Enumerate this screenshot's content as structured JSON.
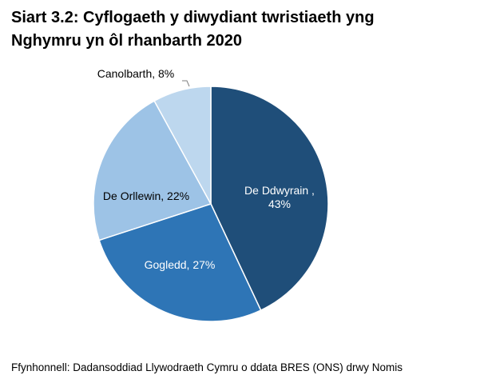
{
  "chart_data": {
    "type": "pie",
    "title_lines": [
      "Siart 3.2: Cyflogaeth y diwydiant twristiaeth yng",
      "Nghymru yn ôl rhanbarth 2020"
    ],
    "slices": [
      {
        "label_lines": [
          "De Ddwyrain ,",
          "43%"
        ],
        "value": 43,
        "color": "#1f4e79",
        "text_color": "#ffffff"
      },
      {
        "label_lines": [
          "Gogledd, 27%"
        ],
        "value": 27,
        "color": "#2e75b6",
        "text_color": "#ffffff"
      },
      {
        "label_lines": [
          "De Orllewin, 22%"
        ],
        "value": 22,
        "color": "#9dc3e6",
        "text_color": "#000000"
      },
      {
        "label_lines": [
          "Canolbarth, 8%"
        ],
        "value": 8,
        "color": "#bdd7ee",
        "text_color": "#000000"
      }
    ],
    "start_angle": "12 o'clock",
    "direction": "clockwise",
    "source": "Ffynhonnell: Dadansoddiad Llywodraeth Cymru o ddata BRES (ONS) drwy Nomis"
  }
}
